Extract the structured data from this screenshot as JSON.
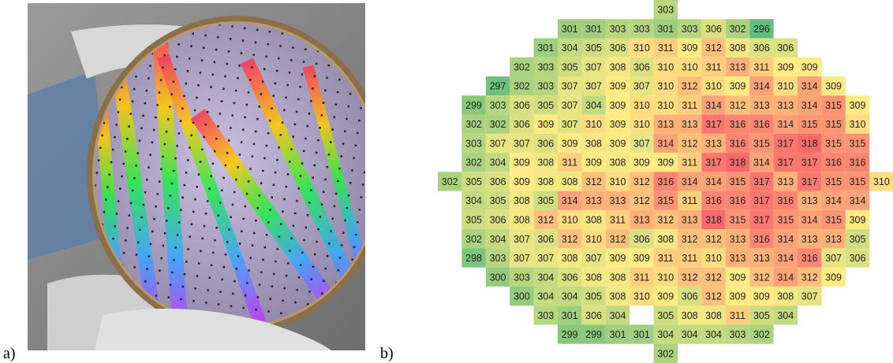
{
  "labels": {
    "a": "a)",
    "b": "b)"
  },
  "wafer_map": {
    "colors": [
      "#63be7b",
      "#ffeb84",
      "#f8696b"
    ],
    "rows": [
      [
        null,
        null,
        null,
        null,
        null,
        null,
        null,
        null,
        null,
        303,
        null,
        null,
        null,
        null,
        null,
        null,
        null,
        null,
        null
      ],
      [
        null,
        null,
        null,
        null,
        null,
        301,
        301,
        303,
        303,
        301,
        303,
        306,
        302,
        296,
        null,
        null,
        null,
        null,
        null
      ],
      [
        null,
        null,
        null,
        null,
        301,
        304,
        305,
        306,
        310,
        311,
        309,
        312,
        308,
        306,
        306,
        null,
        null,
        null,
        null
      ],
      [
        null,
        null,
        null,
        302,
        303,
        305,
        307,
        308,
        306,
        310,
        310,
        311,
        313,
        311,
        309,
        309,
        null,
        null,
        null
      ],
      [
        null,
        null,
        297,
        302,
        303,
        307,
        307,
        309,
        307,
        310,
        312,
        310,
        309,
        314,
        310,
        314,
        309,
        null,
        null
      ],
      [
        null,
        299,
        303,
        306,
        305,
        307,
        304,
        309,
        310,
        310,
        311,
        314,
        312,
        313,
        313,
        314,
        315,
        309,
        null
      ],
      [
        null,
        302,
        302,
        306,
        309,
        307,
        310,
        309,
        310,
        313,
        313,
        317,
        316,
        316,
        314,
        315,
        315,
        310,
        null
      ],
      [
        null,
        303,
        307,
        307,
        306,
        309,
        308,
        309,
        307,
        314,
        312,
        313,
        316,
        315,
        317,
        318,
        315,
        315,
        null
      ],
      [
        null,
        302,
        304,
        309,
        308,
        311,
        309,
        308,
        309,
        309,
        311,
        317,
        318,
        314,
        317,
        317,
        316,
        316,
        null
      ],
      [
        302,
        305,
        306,
        309,
        308,
        308,
        312,
        310,
        312,
        316,
        314,
        314,
        315,
        317,
        313,
        317,
        315,
        315,
        310
      ],
      [
        null,
        304,
        305,
        308,
        305,
        314,
        313,
        313,
        312,
        315,
        311,
        316,
        316,
        317,
        316,
        313,
        314,
        314,
        null
      ],
      [
        null,
        305,
        306,
        308,
        312,
        310,
        308,
        311,
        313,
        312,
        313,
        318,
        315,
        317,
        315,
        314,
        315,
        309,
        null
      ],
      [
        null,
        302,
        304,
        307,
        306,
        312,
        310,
        312,
        306,
        308,
        312,
        312,
        313,
        316,
        314,
        313,
        313,
        305,
        null
      ],
      [
        null,
        298,
        303,
        307,
        307,
        308,
        307,
        309,
        309,
        311,
        311,
        310,
        313,
        313,
        314,
        316,
        307,
        306,
        null
      ],
      [
        null,
        null,
        300,
        303,
        304,
        306,
        308,
        308,
        311,
        310,
        312,
        312,
        309,
        312,
        314,
        312,
        309,
        null,
        null
      ],
      [
        null,
        null,
        null,
        300,
        304,
        304,
        305,
        308,
        310,
        309,
        306,
        312,
        309,
        309,
        308,
        307,
        null,
        null,
        null
      ],
      [
        null,
        null,
        null,
        null,
        303,
        301,
        306,
        304,
        null,
        305,
        308,
        308,
        311,
        305,
        304,
        null,
        null,
        null,
        null
      ],
      [
        null,
        null,
        null,
        null,
        null,
        299,
        299,
        301,
        301,
        304,
        304,
        304,
        303,
        302,
        null,
        null,
        null,
        null,
        null
      ],
      [
        null,
        null,
        null,
        null,
        null,
        null,
        null,
        null,
        null,
        302,
        null,
        null,
        null,
        null,
        null,
        null,
        null,
        null,
        null
      ]
    ]
  }
}
